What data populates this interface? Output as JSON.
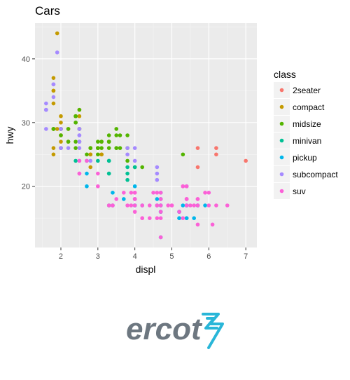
{
  "chart_data": {
    "type": "scatter",
    "title": "Cars",
    "xlabel": "displ",
    "ylabel": "hwy",
    "xlim": [
      1.3,
      7.3
    ],
    "ylim": [
      10.4,
      45.6
    ],
    "xticks": [
      2,
      3,
      4,
      5,
      6,
      7
    ],
    "yticks": [
      20,
      30,
      40
    ],
    "grid": true,
    "legend": {
      "title": "class",
      "position": "right"
    },
    "series": [
      {
        "name": "2seater",
        "color": "#F8766D",
        "points": [
          [
            5.7,
            26
          ],
          [
            5.7,
            23
          ],
          [
            6.2,
            26
          ],
          [
            6.2,
            25
          ],
          [
            7.0,
            24
          ]
        ]
      },
      {
        "name": "compact",
        "color": "#C49A00",
        "points": [
          [
            1.8,
            29
          ],
          [
            1.8,
            29
          ],
          [
            2.0,
            31
          ],
          [
            2.0,
            30
          ],
          [
            2.8,
            26
          ],
          [
            2.8,
            26
          ],
          [
            3.1,
            27
          ],
          [
            1.8,
            26
          ],
          [
            1.8,
            25
          ],
          [
            2.0,
            28
          ],
          [
            2.0,
            27
          ],
          [
            2.8,
            25
          ],
          [
            2.8,
            25
          ],
          [
            3.1,
            25
          ],
          [
            3.1,
            25
          ],
          [
            2.2,
            27
          ],
          [
            2.2,
            29
          ],
          [
            2.4,
            31
          ],
          [
            2.4,
            31
          ],
          [
            3.0,
            26
          ],
          [
            3.0,
            26
          ],
          [
            3.3,
            27
          ],
          [
            1.8,
            33
          ],
          [
            1.8,
            35
          ],
          [
            1.8,
            37
          ],
          [
            1.8,
            35
          ],
          [
            1.9,
            44
          ],
          [
            2.0,
            29
          ],
          [
            2.0,
            26
          ],
          [
            2.0,
            29
          ],
          [
            2.5,
            29
          ],
          [
            2.5,
            29
          ],
          [
            2.8,
            23
          ],
          [
            1.9,
            29
          ],
          [
            2.0,
            28
          ],
          [
            2.0,
            29
          ],
          [
            2.5,
            31
          ],
          [
            2.5,
            32
          ]
        ]
      },
      {
        "name": "midsize",
        "color": "#53B400",
        "points": [
          [
            2.4,
            27
          ],
          [
            2.4,
            30
          ],
          [
            3.1,
            26
          ],
          [
            3.5,
            29
          ],
          [
            3.6,
            26
          ],
          [
            2.4,
            26
          ],
          [
            3.0,
            27
          ],
          [
            3.3,
            28
          ],
          [
            3.3,
            27
          ],
          [
            3.5,
            28
          ],
          [
            3.8,
            26
          ],
          [
            2.0,
            26
          ],
          [
            2.5,
            27
          ],
          [
            2.7,
            25
          ],
          [
            1.8,
            29
          ],
          [
            1.8,
            29
          ],
          [
            2.0,
            28
          ],
          [
            2.0,
            29
          ],
          [
            2.8,
            26
          ],
          [
            2.8,
            26
          ],
          [
            3.1,
            27
          ],
          [
            2.5,
            29
          ],
          [
            2.5,
            32
          ],
          [
            2.2,
            27
          ],
          [
            2.2,
            29
          ],
          [
            2.4,
            31
          ],
          [
            2.4,
            31
          ],
          [
            3.0,
            26
          ],
          [
            3.0,
            26
          ],
          [
            3.5,
            26
          ],
          [
            3.3,
            26
          ],
          [
            4.2,
            23
          ],
          [
            4.0,
            23
          ],
          [
            3.0,
            25
          ],
          [
            3.8,
            24
          ],
          [
            3.5,
            26
          ],
          [
            5.3,
            25
          ],
          [
            2.4,
            30
          ],
          [
            3.3,
            27
          ],
          [
            3.6,
            28
          ],
          [
            3.8,
            28
          ]
        ]
      },
      {
        "name": "minivan",
        "color": "#00C094",
        "points": [
          [
            2.4,
            24
          ],
          [
            3.0,
            24
          ],
          [
            3.3,
            22
          ],
          [
            3.3,
            22
          ],
          [
            3.3,
            24
          ],
          [
            3.3,
            24
          ],
          [
            3.3,
            17
          ],
          [
            3.8,
            22
          ],
          [
            3.8,
            21
          ],
          [
            3.8,
            23
          ],
          [
            4.0,
            23
          ]
        ]
      },
      {
        "name": "pickup",
        "color": "#00B6EB",
        "points": [
          [
            2.7,
            20
          ],
          [
            2.7,
            22
          ],
          [
            3.4,
            17
          ],
          [
            3.4,
            19
          ],
          [
            3.7,
            18
          ],
          [
            4.0,
            17
          ],
          [
            4.7,
            16
          ],
          [
            4.7,
            17
          ],
          [
            4.7,
            16
          ],
          [
            5.2,
            15
          ],
          [
            5.2,
            16
          ],
          [
            5.7,
            17
          ],
          [
            5.9,
            17
          ],
          [
            4.7,
            12
          ],
          [
            4.7,
            17
          ],
          [
            5.2,
            15
          ],
          [
            5.2,
            16
          ],
          [
            5.7,
            17
          ],
          [
            4.0,
            18
          ],
          [
            4.2,
            17
          ],
          [
            4.7,
            19
          ],
          [
            4.7,
            18
          ],
          [
            5.4,
            17
          ],
          [
            4.0,
            20
          ],
          [
            4.6,
            18
          ],
          [
            5.4,
            15
          ],
          [
            5.4,
            17
          ],
          [
            4.6,
            17
          ],
          [
            5.4,
            15
          ],
          [
            2.7,
            24
          ],
          [
            4.0,
            17
          ],
          [
            5.3,
            17
          ],
          [
            5.6,
            15
          ]
        ]
      },
      {
        "name": "subcompact",
        "color": "#A58AFF",
        "points": [
          [
            3.8,
            26
          ],
          [
            3.8,
            25
          ],
          [
            4.0,
            26
          ],
          [
            4.0,
            24
          ],
          [
            4.6,
            21
          ],
          [
            4.6,
            22
          ],
          [
            4.6,
            23
          ],
          [
            5.4,
            20
          ],
          [
            5.4,
            20
          ],
          [
            1.6,
            33
          ],
          [
            1.6,
            32
          ],
          [
            1.6,
            32
          ],
          [
            1.6,
            29
          ],
          [
            1.6,
            32
          ],
          [
            1.8,
            34
          ],
          [
            1.8,
            36
          ],
          [
            1.8,
            36
          ],
          [
            2.0,
            29
          ],
          [
            1.9,
            41
          ],
          [
            2.0,
            26
          ],
          [
            2.0,
            29
          ],
          [
            2.0,
            26
          ],
          [
            2.2,
            26
          ],
          [
            2.5,
            27
          ],
          [
            2.5,
            29
          ],
          [
            2.5,
            28
          ],
          [
            2.5,
            26
          ],
          [
            2.5,
            29
          ],
          [
            2.5,
            28
          ],
          [
            2.5,
            27
          ],
          [
            2.0,
            26
          ],
          [
            2.8,
            24
          ]
        ]
      },
      {
        "name": "suv",
        "color": "#FB61D7",
        "points": [
          [
            5.3,
            20
          ],
          [
            5.3,
            15
          ],
          [
            5.3,
            20
          ],
          [
            5.7,
            17
          ],
          [
            6.0,
            17
          ],
          [
            5.7,
            17
          ],
          [
            5.7,
            18
          ],
          [
            6.2,
            17
          ],
          [
            6.5,
            17
          ],
          [
            3.7,
            19
          ],
          [
            3.9,
            17
          ],
          [
            4.6,
            17
          ],
          [
            5.2,
            16
          ],
          [
            5.9,
            19
          ],
          [
            4.7,
            17
          ],
          [
            4.7,
            19
          ],
          [
            4.7,
            12
          ],
          [
            5.7,
            14
          ],
          [
            6.1,
            14
          ],
          [
            4.0,
            19
          ],
          [
            4.2,
            17
          ],
          [
            4.4,
            15
          ],
          [
            4.6,
            19
          ],
          [
            5.4,
            18
          ],
          [
            5.4,
            18
          ],
          [
            5.4,
            20
          ],
          [
            5.6,
            17
          ],
          [
            3.3,
            17
          ],
          [
            3.0,
            20
          ],
          [
            2.5,
            24
          ],
          [
            2.5,
            24
          ],
          [
            2.5,
            22
          ],
          [
            2.5,
            22
          ],
          [
            3.8,
            17
          ],
          [
            4.0,
            19
          ],
          [
            4.0,
            18
          ],
          [
            4.6,
            15
          ],
          [
            5.0,
            17
          ],
          [
            5.4,
            17
          ],
          [
            3.9,
            19
          ],
          [
            4.5,
            19
          ],
          [
            5.5,
            17
          ],
          [
            5.0,
            17
          ],
          [
            3.5,
            18
          ],
          [
            4.2,
            15
          ],
          [
            4.4,
            17
          ],
          [
            4.9,
            17
          ],
          [
            6.0,
            19
          ],
          [
            5.4,
            18
          ],
          [
            4.7,
            16
          ],
          [
            4.0,
            17
          ],
          [
            4.6,
            17
          ],
          [
            4.7,
            15
          ],
          [
            4.0,
            18
          ],
          [
            2.7,
            24
          ],
          [
            3.4,
            17
          ],
          [
            4.0,
            16
          ],
          [
            4.7,
            18
          ],
          [
            5.7,
            18
          ],
          [
            4.2,
            15
          ],
          [
            3.4,
            17
          ],
          [
            3.0,
            22
          ]
        ]
      }
    ]
  },
  "logo": {
    "text": "ercot",
    "color": "#6d7780",
    "mark_color": "#29b6d8"
  }
}
